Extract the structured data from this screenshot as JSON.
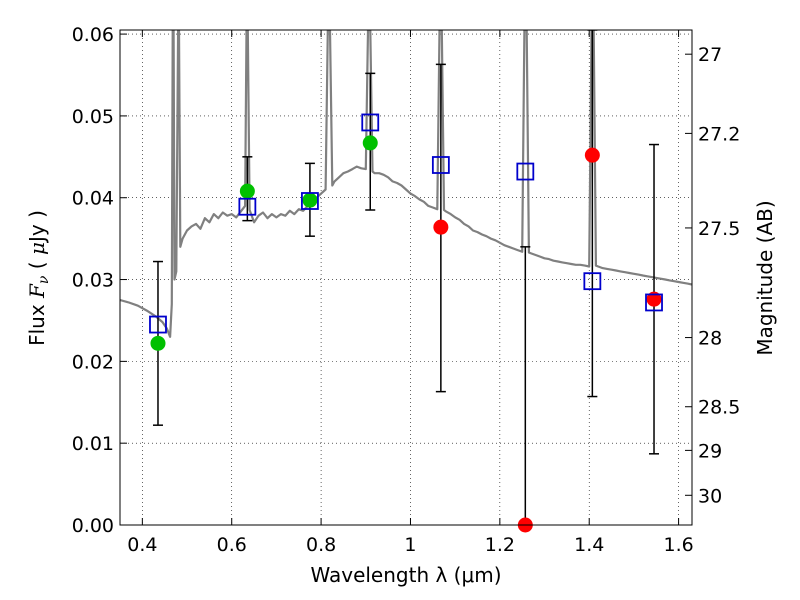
{
  "chart_data": {
    "type": "scatter",
    "title": "",
    "xlabel": "Wavelength  λ (μm)",
    "ylabel": "Flux  Fν ( μJy )",
    "ylabel_parts": {
      "pre": "Flux  ",
      "sym": "F",
      "sub": "ν",
      "mid": " ( ",
      "mu": "μ",
      "post": "Jy )"
    },
    "ylabel_right": "Magnitude (AB)",
    "xlim": [
      0.35,
      1.63
    ],
    "ylim": [
      0.0,
      0.0605
    ],
    "grid": true,
    "x_ticks": [
      {
        "value": 0.4,
        "label": "0.4"
      },
      {
        "value": 0.6,
        "label": "0.6"
      },
      {
        "value": 0.8,
        "label": "0.8"
      },
      {
        "value": 1.0,
        "label": "1"
      },
      {
        "value": 1.2,
        "label": "1.2"
      },
      {
        "value": 1.4,
        "label": "1.4"
      },
      {
        "value": 1.6,
        "label": "1.6"
      }
    ],
    "y_ticks": [
      {
        "value": 0.0,
        "label": "0.00"
      },
      {
        "value": 0.01,
        "label": "0.01"
      },
      {
        "value": 0.02,
        "label": "0.02"
      },
      {
        "value": 0.03,
        "label": "0.03"
      },
      {
        "value": 0.04,
        "label": "0.04"
      },
      {
        "value": 0.05,
        "label": "0.05"
      },
      {
        "value": 0.06,
        "label": "0.06"
      }
    ],
    "right_ticks": [
      {
        "mag": 27.0,
        "label": "27"
      },
      {
        "mag": 27.2,
        "label": "27.2"
      },
      {
        "mag": 27.5,
        "label": "27.5"
      },
      {
        "mag": 28.0,
        "label": "28"
      },
      {
        "mag": 28.5,
        "label": "28.5"
      },
      {
        "mag": 29.0,
        "label": "29"
      },
      {
        "mag": 30.0,
        "label": "30"
      }
    ],
    "colors": {
      "model": "#808080",
      "green": "#00c000",
      "red": "#ff0000",
      "box": "#0000cc",
      "errorbar": "#000000"
    },
    "model_spectrum": [
      [
        0.35,
        0.0275
      ],
      [
        0.37,
        0.0272
      ],
      [
        0.39,
        0.0268
      ],
      [
        0.41,
        0.0262
      ],
      [
        0.43,
        0.0255
      ],
      [
        0.445,
        0.0248
      ],
      [
        0.455,
        0.024
      ],
      [
        0.462,
        0.023
      ],
      [
        0.466,
        0.027
      ],
      [
        0.468,
        0.0605
      ],
      [
        0.47,
        0.0605
      ],
      [
        0.472,
        0.03
      ],
      [
        0.476,
        0.031
      ],
      [
        0.48,
        0.0605
      ],
      [
        0.482,
        0.0605
      ],
      [
        0.485,
        0.034
      ],
      [
        0.49,
        0.035
      ],
      [
        0.5,
        0.036
      ],
      [
        0.51,
        0.0365
      ],
      [
        0.52,
        0.0368
      ],
      [
        0.53,
        0.0362
      ],
      [
        0.54,
        0.0375
      ],
      [
        0.55,
        0.037
      ],
      [
        0.56,
        0.038
      ],
      [
        0.57,
        0.0375
      ],
      [
        0.58,
        0.0382
      ],
      [
        0.59,
        0.0378
      ],
      [
        0.6,
        0.038
      ],
      [
        0.61,
        0.0376
      ],
      [
        0.62,
        0.0383
      ],
      [
        0.63,
        0.039
      ],
      [
        0.633,
        0.0605
      ],
      [
        0.636,
        0.0605
      ],
      [
        0.64,
        0.0385
      ],
      [
        0.65,
        0.037
      ],
      [
        0.66,
        0.0378
      ],
      [
        0.67,
        0.0382
      ],
      [
        0.68,
        0.0375
      ],
      [
        0.69,
        0.038
      ],
      [
        0.7,
        0.0376
      ],
      [
        0.71,
        0.038
      ],
      [
        0.72,
        0.0378
      ],
      [
        0.73,
        0.0384
      ],
      [
        0.74,
        0.038
      ],
      [
        0.75,
        0.0386
      ],
      [
        0.76,
        0.0384
      ],
      [
        0.77,
        0.039
      ],
      [
        0.78,
        0.0395
      ],
      [
        0.79,
        0.04
      ],
      [
        0.8,
        0.0405
      ],
      [
        0.81,
        0.041
      ],
      [
        0.815,
        0.0605
      ],
      [
        0.82,
        0.0605
      ],
      [
        0.825,
        0.0415
      ],
      [
        0.83,
        0.042
      ],
      [
        0.84,
        0.0425
      ],
      [
        0.85,
        0.043
      ],
      [
        0.86,
        0.0432
      ],
      [
        0.87,
        0.0435
      ],
      [
        0.88,
        0.0438
      ],
      [
        0.89,
        0.0436
      ],
      [
        0.9,
        0.0435
      ],
      [
        0.905,
        0.0605
      ],
      [
        0.91,
        0.0605
      ],
      [
        0.915,
        0.0432
      ],
      [
        0.92,
        0.043
      ],
      [
        0.93,
        0.043
      ],
      [
        0.94,
        0.0428
      ],
      [
        0.95,
        0.0425
      ],
      [
        0.96,
        0.042
      ],
      [
        0.97,
        0.0418
      ],
      [
        0.98,
        0.0415
      ],
      [
        0.99,
        0.041
      ],
      [
        1.0,
        0.0405
      ],
      [
        1.01,
        0.0402
      ],
      [
        1.02,
        0.0398
      ],
      [
        1.03,
        0.0395
      ],
      [
        1.04,
        0.039
      ],
      [
        1.05,
        0.0388
      ],
      [
        1.06,
        0.0386
      ],
      [
        1.065,
        0.0605
      ],
      [
        1.07,
        0.0605
      ],
      [
        1.075,
        0.0385
      ],
      [
        1.08,
        0.0383
      ],
      [
        1.09,
        0.038
      ],
      [
        1.1,
        0.0376
      ],
      [
        1.11,
        0.0373
      ],
      [
        1.12,
        0.0368
      ],
      [
        1.13,
        0.0365
      ],
      [
        1.14,
        0.036
      ],
      [
        1.15,
        0.0358
      ],
      [
        1.16,
        0.0355
      ],
      [
        1.17,
        0.0353
      ],
      [
        1.18,
        0.035
      ],
      [
        1.19,
        0.0348
      ],
      [
        1.2,
        0.0345
      ],
      [
        1.21,
        0.0342
      ],
      [
        1.22,
        0.034
      ],
      [
        1.23,
        0.0338
      ],
      [
        1.24,
        0.0336
      ],
      [
        1.25,
        0.0334
      ],
      [
        1.255,
        0.0605
      ],
      [
        1.26,
        0.0605
      ],
      [
        1.265,
        0.0333
      ],
      [
        1.27,
        0.0332
      ],
      [
        1.28,
        0.033
      ],
      [
        1.29,
        0.0328
      ],
      [
        1.3,
        0.0326
      ],
      [
        1.31,
        0.0325
      ],
      [
        1.32,
        0.0323
      ],
      [
        1.33,
        0.0322
      ],
      [
        1.34,
        0.0321
      ],
      [
        1.35,
        0.032
      ],
      [
        1.36,
        0.0319
      ],
      [
        1.37,
        0.0318
      ],
      [
        1.38,
        0.0318
      ],
      [
        1.39,
        0.0317
      ],
      [
        1.4,
        0.0316
      ],
      [
        1.405,
        0.0605
      ],
      [
        1.41,
        0.0605
      ],
      [
        1.415,
        0.0317
      ],
      [
        1.42,
        0.0316
      ],
      [
        1.43,
        0.0314
      ],
      [
        1.44,
        0.0313
      ],
      [
        1.45,
        0.0312
      ],
      [
        1.46,
        0.0311
      ],
      [
        1.47,
        0.031
      ],
      [
        1.48,
        0.0309
      ],
      [
        1.49,
        0.0308
      ],
      [
        1.5,
        0.0307
      ],
      [
        1.51,
        0.0306
      ],
      [
        1.52,
        0.0305
      ],
      [
        1.53,
        0.0304
      ],
      [
        1.54,
        0.0303
      ],
      [
        1.55,
        0.0302
      ],
      [
        1.56,
        0.0301
      ],
      [
        1.57,
        0.03
      ],
      [
        1.58,
        0.0299
      ],
      [
        1.59,
        0.0298
      ],
      [
        1.6,
        0.0297
      ],
      [
        1.61,
        0.0296
      ],
      [
        1.62,
        0.0295
      ],
      [
        1.63,
        0.0294
      ]
    ],
    "error_bars": [
      {
        "x": 0.435,
        "low": 0.0122,
        "high": 0.0322
      },
      {
        "x": 0.635,
        "low": 0.0372,
        "high": 0.045
      },
      {
        "x": 0.775,
        "low": 0.0353,
        "high": 0.0442
      },
      {
        "x": 0.91,
        "low": 0.0385,
        "high": 0.0552
      },
      {
        "x": 1.068,
        "low": 0.0163,
        "high": 0.0563
      },
      {
        "x": 1.257,
        "low": 0.0,
        "high": 0.034
      },
      {
        "x": 1.407,
        "low": 0.0157,
        "high": 0.0605
      },
      {
        "x": 1.545,
        "low": 0.0087,
        "high": 0.0465
      }
    ],
    "series": [
      {
        "values": [
          {
            "x": 0.435,
            "y": 0.0222
          },
          {
            "x": 0.635,
            "y": 0.0408
          },
          {
            "x": 0.775,
            "y": 0.0397
          },
          {
            "x": 0.91,
            "y": 0.0467
          }
        ]
      },
      {
        "values": [
          {
            "x": 1.068,
            "y": 0.0364
          },
          {
            "x": 1.257,
            "y": 0.0
          },
          {
            "x": 1.407,
            "y": 0.0452
          },
          {
            "x": 1.545,
            "y": 0.0276
          }
        ]
      },
      {
        "values": [
          {
            "x": 0.435,
            "y": 0.0245
          },
          {
            "x": 0.635,
            "y": 0.0389
          },
          {
            "x": 0.775,
            "y": 0.0396
          },
          {
            "x": 0.91,
            "y": 0.0492
          },
          {
            "x": 1.068,
            "y": 0.044
          },
          {
            "x": 1.257,
            "y": 0.0432
          },
          {
            "x": 1.407,
            "y": 0.0298
          },
          {
            "x": 1.545,
            "y": 0.0272
          }
        ]
      }
    ]
  }
}
